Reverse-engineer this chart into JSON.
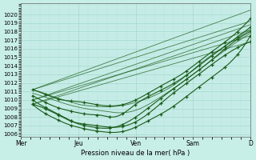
{
  "title": "",
  "xlabel": "Pression niveau de la mer( hPa )",
  "ylim": [
    1006,
    1021
  ],
  "yticks": [
    1006,
    1007,
    1008,
    1009,
    1010,
    1011,
    1012,
    1013,
    1014,
    1015,
    1016,
    1017,
    1018,
    1019,
    1020
  ],
  "xtick_labels": [
    "Mer",
    "Jeu",
    "Ven",
    "Sam",
    "D"
  ],
  "xtick_positions": [
    0.0,
    0.25,
    0.5,
    0.75,
    1.0
  ],
  "xlim": [
    0.0,
    1.0
  ],
  "bg_color": "#c8eee8",
  "grid_major_color": "#a0d8cc",
  "grid_minor_color": "#b8e4dc",
  "line_color": "#1a5c1a",
  "fig_bg": "#c8eee8",
  "straight_lines": [
    {
      "x0": 0.05,
      "y0": 1011.2,
      "x1": 1.0,
      "y1": 1020.5
    },
    {
      "x0": 0.05,
      "y0": 1011.2,
      "x1": 1.0,
      "y1": 1019.2
    },
    {
      "x0": 0.05,
      "y0": 1010.0,
      "x1": 1.0,
      "y1": 1018.8
    },
    {
      "x0": 0.05,
      "y0": 1010.0,
      "x1": 1.0,
      "y1": 1017.5
    },
    {
      "x0": 0.05,
      "y0": 1009.5,
      "x1": 1.0,
      "y1": 1018.2
    },
    {
      "x0": 0.05,
      "y0": 1009.5,
      "x1": 1.0,
      "y1": 1016.8
    }
  ],
  "curved_lines": [
    {
      "points_x": [
        0.05,
        0.12,
        0.18,
        0.25,
        0.32,
        0.38,
        0.45,
        0.5,
        0.6,
        0.7,
        0.8,
        0.9,
        1.0
      ],
      "points_y": [
        1011.2,
        1010.5,
        1010.0,
        1009.8,
        1009.5,
        1009.3,
        1009.5,
        1010.0,
        1011.5,
        1013.0,
        1015.0,
        1017.0,
        1019.5
      ],
      "with_markers": true
    },
    {
      "points_x": [
        0.05,
        0.1,
        0.15,
        0.2,
        0.25,
        0.3,
        0.35,
        0.4,
        0.45,
        0.5,
        0.6,
        0.7,
        0.8,
        0.9,
        1.0
      ],
      "points_y": [
        1010.5,
        1009.8,
        1009.2,
        1008.8,
        1008.5,
        1008.3,
        1008.2,
        1008.0,
        1008.5,
        1009.5,
        1011.0,
        1012.5,
        1014.5,
        1016.5,
        1018.5
      ],
      "with_markers": true
    },
    {
      "points_x": [
        0.05,
        0.1,
        0.15,
        0.2,
        0.25,
        0.28,
        0.32,
        0.38,
        0.43,
        0.5,
        0.6,
        0.7,
        0.8,
        0.9,
        1.0
      ],
      "points_y": [
        1010.0,
        1009.2,
        1008.5,
        1007.8,
        1007.2,
        1007.0,
        1006.8,
        1006.7,
        1007.0,
        1008.0,
        1010.0,
        1012.0,
        1014.0,
        1016.2,
        1018.0
      ],
      "with_markers": true
    },
    {
      "points_x": [
        0.05,
        0.1,
        0.15,
        0.2,
        0.25,
        0.3,
        0.35,
        0.4,
        0.47,
        0.55,
        0.65,
        0.75,
        0.85,
        0.95,
        1.0
      ],
      "points_y": [
        1009.5,
        1008.5,
        1007.8,
        1007.2,
        1006.8,
        1006.5,
        1006.3,
        1006.2,
        1006.5,
        1007.5,
        1009.0,
        1011.0,
        1013.0,
        1015.5,
        1017.5
      ],
      "with_markers": true
    },
    {
      "points_x": [
        0.05,
        0.12,
        0.18,
        0.22,
        0.27,
        0.33,
        0.4,
        0.48,
        0.56,
        0.65,
        0.75,
        0.85,
        1.0
      ],
      "points_y": [
        1009.5,
        1008.8,
        1008.0,
        1007.5,
        1007.2,
        1007.0,
        1006.8,
        1007.2,
        1008.5,
        1010.5,
        1012.5,
        1014.5,
        1016.8
      ],
      "with_markers": true
    },
    {
      "points_x": [
        0.05,
        0.1,
        0.15,
        0.2,
        0.25,
        0.3,
        0.38,
        0.47,
        0.58,
        0.68,
        0.78,
        0.9,
        1.0
      ],
      "points_y": [
        1011.2,
        1010.8,
        1010.3,
        1009.9,
        1009.5,
        1009.3,
        1009.2,
        1009.5,
        1010.5,
        1012.0,
        1014.2,
        1016.5,
        1018.2
      ],
      "with_markers": false
    },
    {
      "points_x": [
        0.05,
        0.12,
        0.2,
        0.28,
        0.36,
        0.44,
        0.52,
        0.6,
        0.7,
        0.8,
        0.9,
        1.0
      ],
      "points_y": [
        1010.8,
        1010.2,
        1009.5,
        1009.0,
        1008.7,
        1008.5,
        1009.0,
        1010.2,
        1012.0,
        1014.0,
        1016.0,
        1017.8
      ],
      "with_markers": false
    }
  ]
}
